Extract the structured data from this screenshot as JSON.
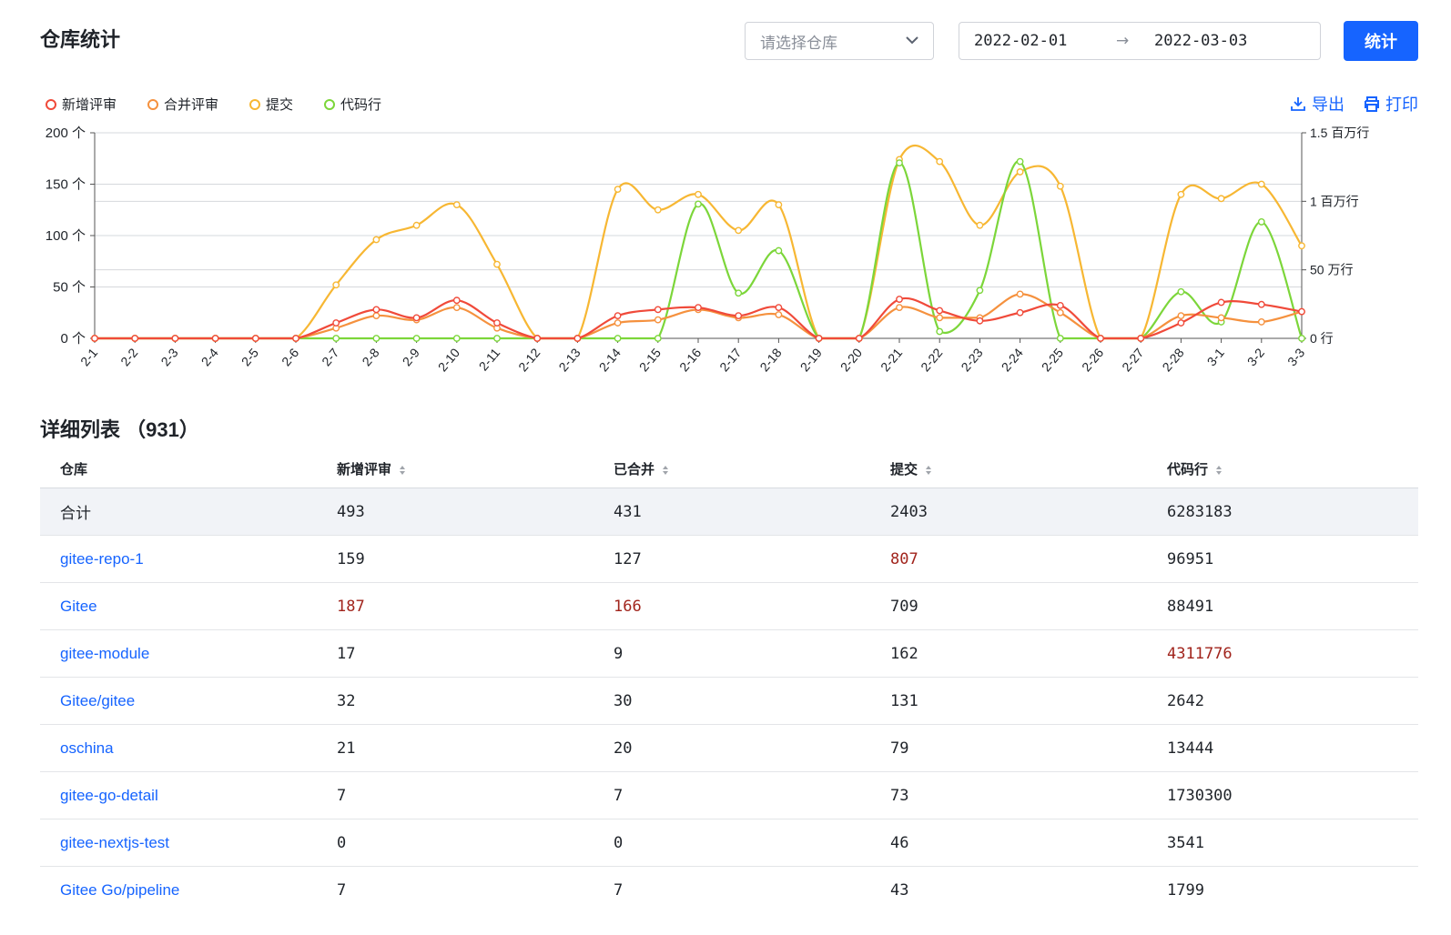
{
  "header": {
    "title": "仓库统计",
    "repo_select_placeholder": "请选择仓库",
    "date_start": "2022-02-01",
    "date_arrow": "→",
    "date_end": "2022-03-03",
    "stat_button": "统计"
  },
  "toolbar": {
    "export_label": "导出",
    "print_label": "打印"
  },
  "colors": {
    "accent": "#1664ff",
    "new_review": "#f04a3a",
    "merge_review": "#f5913e",
    "commit": "#f7b733",
    "code_lines": "#7cd63a"
  },
  "chart_data": {
    "type": "line",
    "categories": [
      "2-1",
      "2-2",
      "2-3",
      "2-4",
      "2-5",
      "2-6",
      "2-7",
      "2-8",
      "2-9",
      "2-10",
      "2-11",
      "2-12",
      "2-13",
      "2-14",
      "2-15",
      "2-16",
      "2-17",
      "2-18",
      "2-19",
      "2-20",
      "2-21",
      "2-22",
      "2-23",
      "2-24",
      "2-25",
      "2-26",
      "2-27",
      "2-28",
      "3-1",
      "3-2",
      "3-3"
    ],
    "series": [
      {
        "name": "新增评审",
        "axis": "left",
        "color": "#f04a3a",
        "values": [
          0,
          0,
          0,
          0,
          0,
          0,
          15,
          28,
          20,
          37,
          15,
          0,
          0,
          22,
          28,
          30,
          22,
          30,
          0,
          0,
          38,
          27,
          17,
          25,
          32,
          0,
          0,
          15,
          35,
          33,
          26
        ]
      },
      {
        "name": "合并评审",
        "axis": "left",
        "color": "#f5913e",
        "values": [
          0,
          0,
          0,
          0,
          0,
          0,
          10,
          22,
          18,
          30,
          10,
          0,
          0,
          15,
          18,
          28,
          20,
          23,
          0,
          0,
          30,
          20,
          20,
          43,
          25,
          0,
          0,
          22,
          20,
          16,
          26
        ]
      },
      {
        "name": "提交",
        "axis": "left",
        "color": "#f7b733",
        "values": [
          0,
          0,
          0,
          0,
          0,
          0,
          52,
          96,
          110,
          130,
          72,
          0,
          0,
          145,
          125,
          140,
          105,
          130,
          0,
          0,
          174,
          172,
          110,
          162,
          148,
          0,
          0,
          140,
          136,
          150,
          90
        ]
      },
      {
        "name": "代码行",
        "axis": "right",
        "color": "#7cd63a",
        "values": [
          0,
          0,
          0,
          0,
          0,
          0,
          0,
          0,
          0,
          0,
          0,
          0,
          0,
          0,
          0,
          980000,
          330000,
          640000,
          0,
          0,
          1280000,
          50000,
          350000,
          1290000,
          0,
          0,
          0,
          340000,
          120000,
          850000,
          0
        ]
      }
    ],
    "y_left": {
      "ticks": [
        "0 个",
        "50 个",
        "100 个",
        "150 个",
        "200 个"
      ],
      "max": 200
    },
    "y_right": {
      "ticks": [
        "0 行",
        "50 万行",
        "1 百万行",
        "1.5 百万行"
      ],
      "max": 1500000
    },
    "grid": true,
    "legend": "top-left"
  },
  "list": {
    "title": "详细列表",
    "count": "（931）",
    "headers": [
      "仓库",
      "新增评审",
      "已合并",
      "提交",
      "代码行"
    ],
    "total": [
      "合计",
      "493",
      "431",
      "2403",
      "6283183"
    ],
    "rows": [
      [
        "gitee-repo-1",
        "159",
        "127",
        "807",
        "96951"
      ],
      [
        "Gitee",
        "187",
        "166",
        "709",
        "88491"
      ],
      [
        "gitee-module",
        "17",
        "9",
        "162",
        "4311776"
      ],
      [
        "Gitee/gitee",
        "32",
        "30",
        "131",
        "2642"
      ],
      [
        "oschina",
        "21",
        "20",
        "79",
        "13444"
      ],
      [
        "gitee-go-detail",
        "7",
        "7",
        "73",
        "1730300"
      ],
      [
        "gitee-nextjs-test",
        "0",
        "0",
        "46",
        "3541"
      ],
      [
        "Gitee Go/pipeline",
        "7",
        "7",
        "43",
        "1799"
      ]
    ],
    "highlights": [
      [
        0,
        3
      ],
      [
        1,
        1
      ],
      [
        1,
        2
      ],
      [
        2,
        4
      ]
    ]
  }
}
